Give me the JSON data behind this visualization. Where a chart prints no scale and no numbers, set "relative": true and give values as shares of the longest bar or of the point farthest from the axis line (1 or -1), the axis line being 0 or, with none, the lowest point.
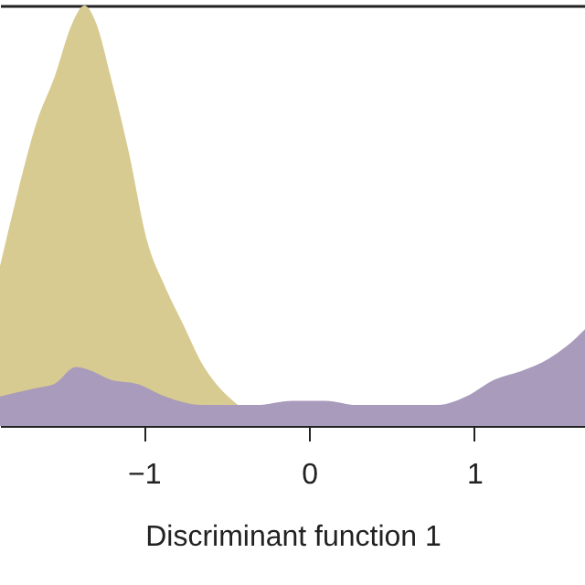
{
  "chart_data": {
    "type": "area",
    "relative": true,
    "xlabel": "Discriminant function 1",
    "xlim": [
      -1.87,
      1.67
    ],
    "xticks": [
      -1,
      0,
      1
    ],
    "grid": false,
    "series": [
      {
        "color": "#d8cb91",
        "x": [
          -1.87,
          -1.76,
          -1.65,
          -1.54,
          -1.43,
          -1.36,
          -1.29,
          -1.2,
          -1.09,
          -0.98,
          -0.87,
          -0.76,
          -0.65,
          -0.54,
          -0.43
        ],
        "values": [
          0.38,
          0.56,
          0.72,
          0.83,
          0.96,
          1,
          0.96,
          0.83,
          0.65,
          0.44,
          0.33,
          0.24,
          0.15,
          0.09,
          0.05
        ]
      },
      {
        "color": "#a99bbb",
        "x": [
          -1.87,
          -1.65,
          -1.54,
          -1.41,
          -1.31,
          -1.2,
          -1.04,
          -0.87,
          -0.65,
          -0.32,
          -0.1,
          0.1,
          0.29,
          0.45,
          0.78,
          0.95,
          1.12,
          1.28,
          1.45,
          1.56,
          1.67
        ],
        "values": [
          0.07,
          0.09,
          0.1,
          0.14,
          0.13,
          0.11,
          0.1,
          0.07,
          0.05,
          0.05,
          0.06,
          0.06,
          0.05,
          0.05,
          0.05,
          0.07,
          0.11,
          0.13,
          0.16,
          0.19,
          0.23
        ]
      }
    ]
  }
}
